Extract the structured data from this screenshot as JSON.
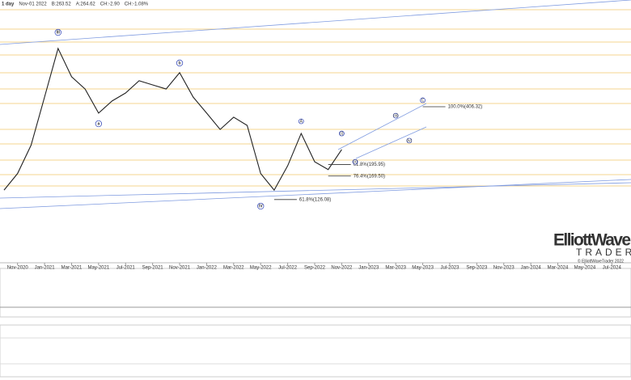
{
  "chart_data": {
    "type": "line",
    "header": [
      "1 day",
      "Nov-01 2022",
      "B:263.52",
      "A:264.62",
      "CH:-2.90",
      "CH:-1.08%"
    ],
    "x": [
      "2020-10",
      "2020-11",
      "2020-12",
      "2021-01",
      "2021-02",
      "2021-03",
      "2021-04",
      "2021-05",
      "2021-06",
      "2021-07",
      "2021-08",
      "2021-09",
      "2021-10",
      "2021-11",
      "2021-12",
      "2022-01",
      "2022-02",
      "2022-03",
      "2022-04",
      "2022-05",
      "2022-06",
      "2022-07",
      "2022-08",
      "2022-09",
      "2022-10",
      "2022-11"
    ],
    "series": [
      {
        "color": "#222222",
        "values": [
          142,
          175,
          250,
          459,
          847,
          593,
          508,
          375,
          437,
          483,
          564,
          535,
          508,
          624,
          459,
          375,
          305,
          356,
          321,
          175,
          142,
          193,
          290,
          203,
          184,
          237
        ]
      }
    ],
    "xlim": [
      "2020-10",
      "2024-08"
    ],
    "xticks": [
      {
        "value": "2020-11",
        "label": "Nov-2020"
      },
      {
        "value": "2021-01",
        "label": "Jan-2021"
      },
      {
        "value": "2021-03",
        "label": "Mar-2021"
      },
      {
        "value": "2021-05",
        "label": "May-2021"
      },
      {
        "value": "2021-07",
        "label": "Jul-2021"
      },
      {
        "value": "2021-09",
        "label": "Sep-2021"
      },
      {
        "value": "2021-11",
        "label": "Nov-2021"
      },
      {
        "value": "2022-01",
        "label": "Jan-2022"
      },
      {
        "value": "2022-03",
        "label": "Mar-2022"
      },
      {
        "value": "2022-05",
        "label": "May-2022"
      },
      {
        "value": "2022-07",
        "label": "Jul-2022"
      },
      {
        "value": "2022-09",
        "label": "Sep-2022"
      },
      {
        "value": "2022-11",
        "label": "Nov-2022"
      },
      {
        "value": "2023-01",
        "label": "Jan-2023"
      },
      {
        "value": "2023-03",
        "label": "Mar-2023"
      },
      {
        "value": "2023-05",
        "label": "May-2023"
      },
      {
        "value": "2023-07",
        "label": "Jul-2023"
      },
      {
        "value": "2023-09",
        "label": "Sep-2023"
      },
      {
        "value": "2023-11",
        "label": "Nov-2023"
      },
      {
        "value": "2024-01",
        "label": "Jan-2024"
      },
      {
        "value": "2024-03",
        "label": "Mar-2024"
      },
      {
        "value": "2024-05",
        "label": "May-2024"
      },
      {
        "value": "2024-07",
        "label": "Jul-2024"
      }
    ],
    "ylim": [
      108,
      1560
    ],
    "log_scale": true,
    "annotations": [
      {
        "text": "III",
        "x": "2021-02",
        "value": 1037
      },
      {
        "text": "a",
        "x": "2021-05",
        "value": 328
      },
      {
        "text": "b",
        "x": "2021-11",
        "value": 705
      },
      {
        "text": "IV",
        "x": "2022-05",
        "value": 116
      },
      {
        "text": "A",
        "x": "2022-08",
        "value": 338
      },
      {
        "text": "(i)",
        "x": "2022-11",
        "value": 290
      },
      {
        "text": "(ii)",
        "x": "2022-12",
        "value": 203
      },
      {
        "text": "(iii)",
        "x": "2023-03",
        "value": 363
      },
      {
        "text": "(iv)",
        "x": "2023-04",
        "value": 265
      },
      {
        "text": "C",
        "x": "2023-05",
        "value": 441
      }
    ],
    "fib_levels": [
      {
        "label": "100.0%(406.32)",
        "value": 406.32,
        "x": "2023-05"
      },
      {
        "label": "61.8%(195.95)",
        "value": 195.95,
        "x": "2022-10"
      },
      {
        "label": "76.4%(169.50)",
        "value": 169.5,
        "x": "2022-10"
      },
      {
        "label": "61.8%(126.08)",
        "value": 126.08,
        "x": "2022-06"
      }
    ],
    "watermark": [
      "ElliottWave",
      "TRADER",
      "© ElliottWaveTrader 2022"
    ]
  }
}
